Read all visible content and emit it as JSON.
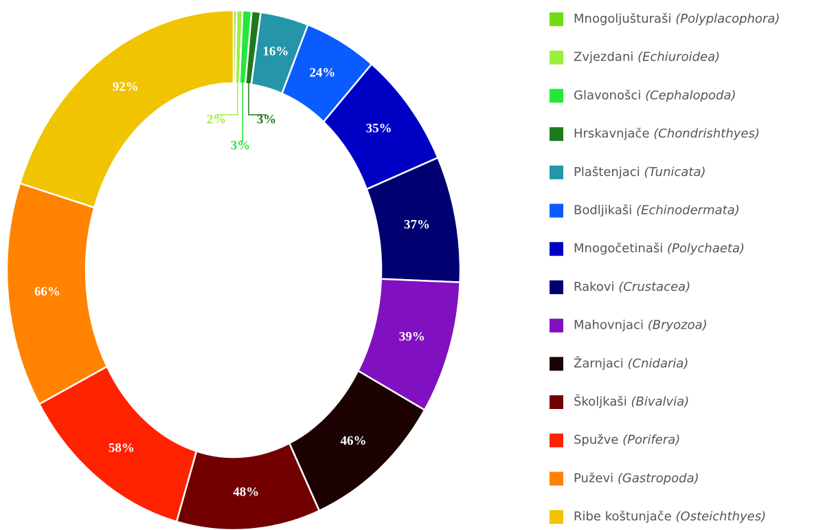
{
  "chart_data": {
    "type": "donut",
    "categories": [
      "Mnogoljušturaši",
      "Zvjezdani",
      "Glavonošci",
      "Hrskavnjače",
      "Plaštenjaci",
      "Bodljikaši",
      "Mnogočetinaši",
      "Rakovi",
      "Mahovnjaci",
      "Žarnjaci",
      "Školjkaši",
      "Spužve",
      "Puževi",
      "Ribe koštunjače"
    ],
    "latin": [
      "(Polyplacophora)",
      "(Echiuroidea)",
      "(Cephalopoda)",
      "(Chondrishthyes)",
      "(Tunicata)",
      "(Echinodermata)",
      "(Polychaeta)",
      "(Crustacea)",
      "(Bryozoa)",
      "(Cnidaria)",
      "(Bivalvia)",
      "(Porifera)",
      "(Gastropoda)",
      "(Osteichthyes)"
    ],
    "values": [
      1,
      2,
      3,
      3,
      16,
      24,
      35,
      37,
      39,
      46,
      48,
      58,
      66,
      92
    ],
    "value_labels": [
      null,
      "2%",
      "3%",
      "3%",
      "16%",
      "24%",
      "35%",
      "37%",
      "39%",
      "46%",
      "48%",
      "58%",
      "66%",
      "92%"
    ],
    "colors": [
      "#6fdc14",
      "#9cf03a",
      "#22e83a",
      "#1d7a1d",
      "#2596aa",
      "#0a5cff",
      "#0000c4",
      "#000070",
      "#8010c0",
      "#1c0202",
      "#720000",
      "#ff2200",
      "#ff8200",
      "#f0c400"
    ]
  }
}
